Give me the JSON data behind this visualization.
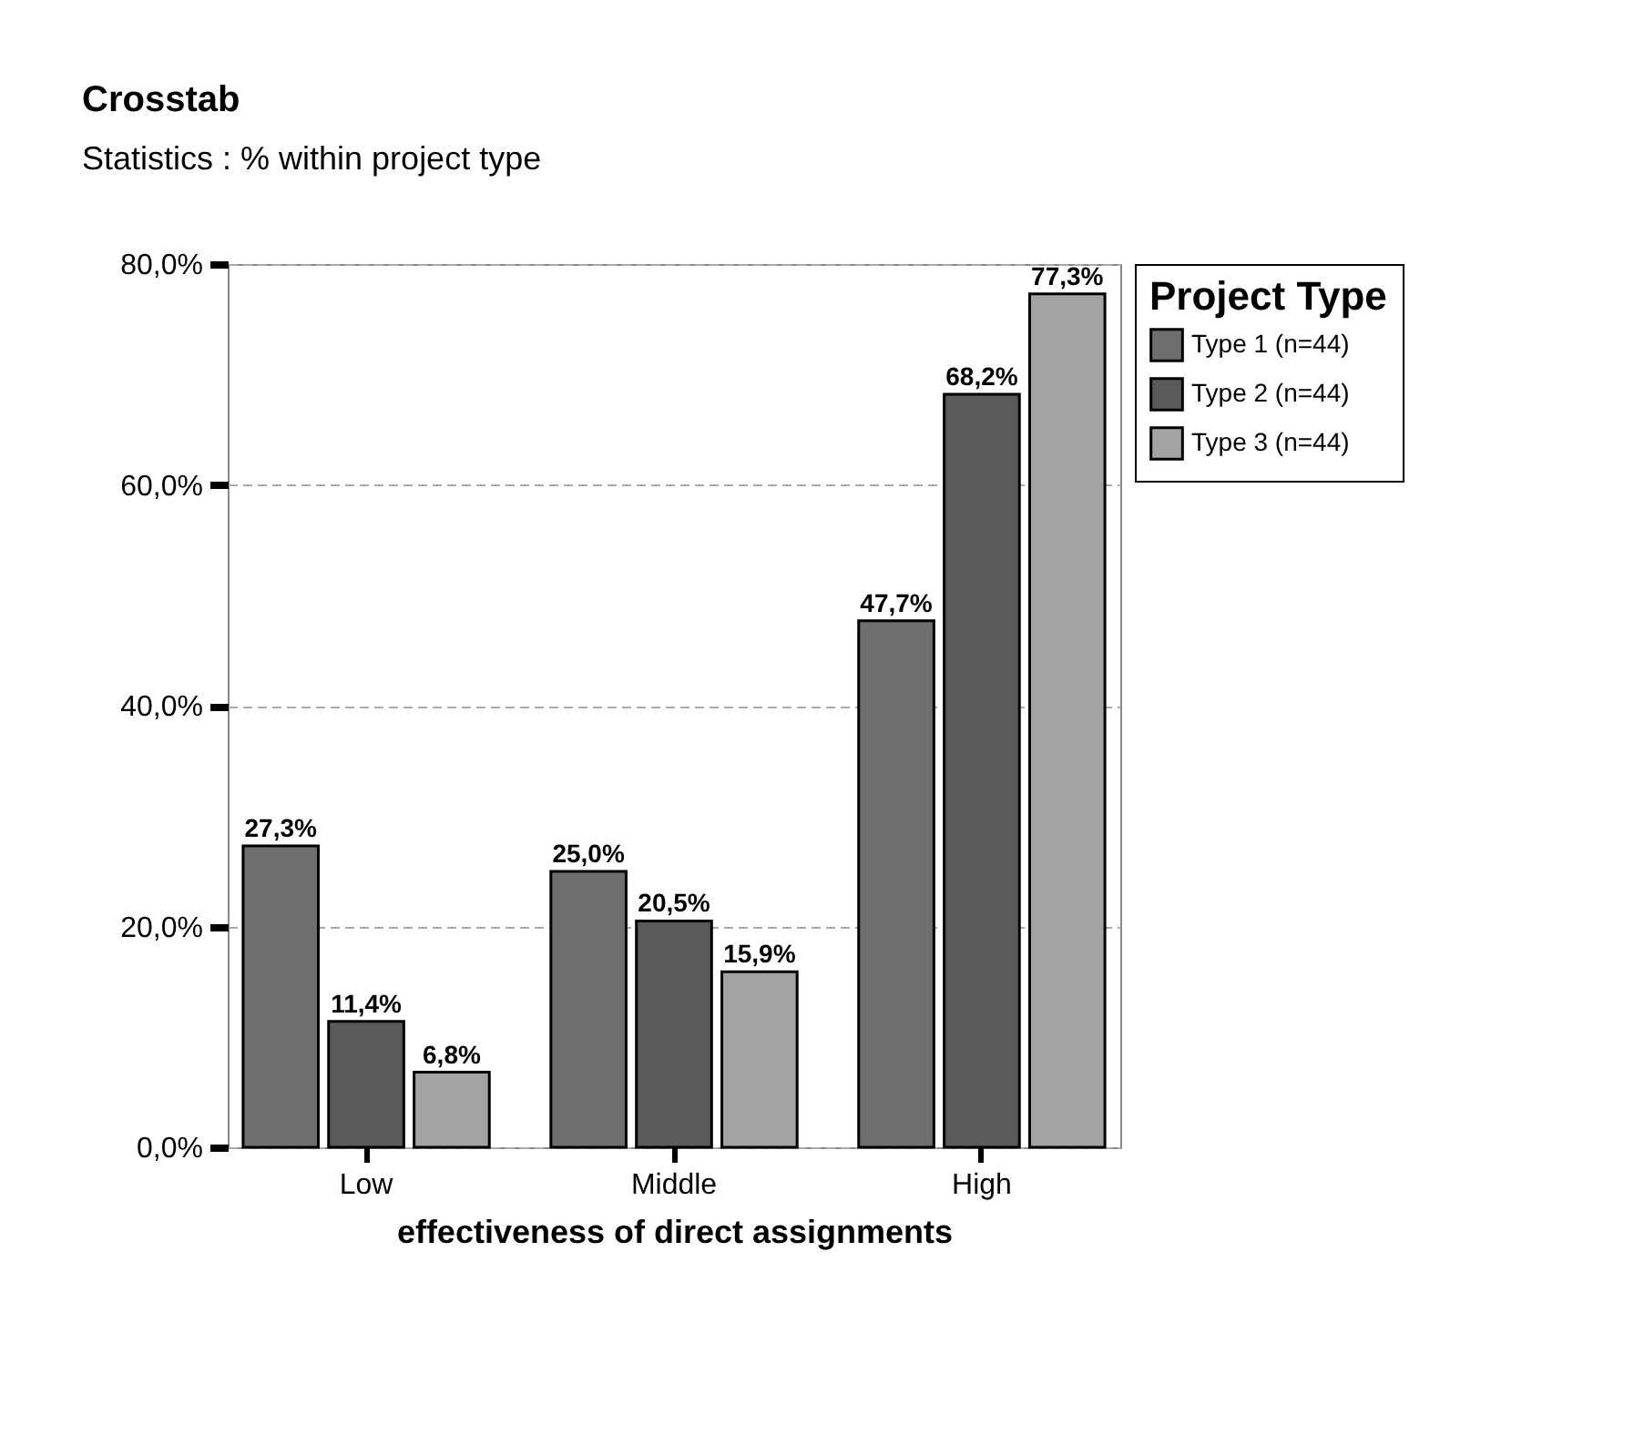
{
  "chart_data": {
    "type": "bar",
    "title": "Crosstab",
    "subtitle": "Statistics : % within project type",
    "xlabel": "effectiveness of direct assignments",
    "legend_title": "Project Type",
    "categories": [
      "Low",
      "Middle",
      "High"
    ],
    "series": [
      {
        "name": "Type 1 (n=44)",
        "color": "#6e6e6e",
        "values": [
          27.3,
          25.0,
          47.7
        ],
        "value_labels": [
          "27,3%",
          "25,0%",
          "47,7%"
        ]
      },
      {
        "name": "Type 2 (n=44)",
        "color": "#5a5a5a",
        "values": [
          11.4,
          20.5,
          68.2
        ],
        "value_labels": [
          "11,4%",
          "20,5%",
          "68,2%"
        ]
      },
      {
        "name": "Type 3 (n=44)",
        "color": "#a3a3a3",
        "values": [
          6.8,
          15.9,
          77.3
        ],
        "value_labels": [
          "6,8%",
          "15,9%",
          "77,3%"
        ]
      }
    ],
    "ylim": [
      0,
      80
    ],
    "yticks": [
      {
        "value": 0,
        "label": "0,0%"
      },
      {
        "value": 20,
        "label": "20,0%"
      },
      {
        "value": 40,
        "label": "40,0%"
      },
      {
        "value": 60,
        "label": "60,0%"
      },
      {
        "value": 80,
        "label": "80,0%"
      }
    ],
    "grid": "y",
    "legend": "top right"
  }
}
